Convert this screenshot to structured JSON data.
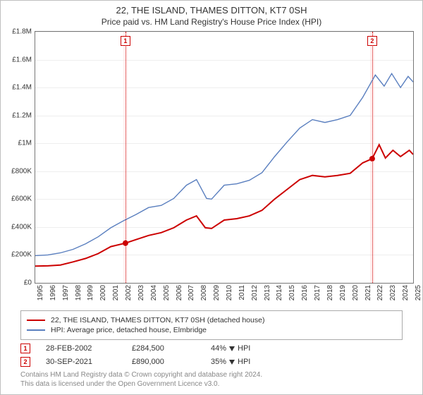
{
  "title": "22, THE ISLAND, THAMES DITTON, KT7 0SH",
  "subtitle": "Price paid vs. HM Land Registry's House Price Index (HPI)",
  "chart": {
    "type": "line",
    "background_color": "#ffffff",
    "grid_color": "#eeeeee",
    "axis_color": "#777777",
    "x": {
      "min": 1995,
      "max": 2025,
      "tick_step": 1
    },
    "y": {
      "min": 0,
      "max": 1800000,
      "tick_step": 200000,
      "tick_labels": [
        "£0",
        "£200K",
        "£400K",
        "£600K",
        "£800K",
        "£1M",
        "£1.2M",
        "£1.4M",
        "£1.6M",
        "£1.8M"
      ]
    },
    "events": [
      {
        "id": "1",
        "x": 2002.16,
        "color": "#cc0000",
        "band_color": "rgba(255,210,210,0.35)"
      },
      {
        "id": "2",
        "x": 2021.75,
        "color": "#cc0000",
        "band_color": "rgba(255,210,210,0.35)"
      }
    ],
    "series": [
      {
        "name": "price_paid",
        "color": "#cc0000",
        "width": 2,
        "pts": [
          [
            1995,
            120000
          ],
          [
            1996,
            122000
          ],
          [
            1997,
            128000
          ],
          [
            1998,
            150000
          ],
          [
            1999,
            175000
          ],
          [
            2000,
            210000
          ],
          [
            2001,
            260000
          ],
          [
            2002.16,
            284500
          ],
          [
            2003,
            310000
          ],
          [
            2004,
            340000
          ],
          [
            2005,
            360000
          ],
          [
            2006,
            395000
          ],
          [
            2007,
            450000
          ],
          [
            2007.8,
            480000
          ],
          [
            2008.5,
            395000
          ],
          [
            2009,
            390000
          ],
          [
            2010,
            450000
          ],
          [
            2011,
            460000
          ],
          [
            2012,
            480000
          ],
          [
            2013,
            520000
          ],
          [
            2014,
            600000
          ],
          [
            2015,
            670000
          ],
          [
            2016,
            740000
          ],
          [
            2017,
            770000
          ],
          [
            2018,
            760000
          ],
          [
            2019,
            770000
          ],
          [
            2020,
            785000
          ],
          [
            2021,
            860000
          ],
          [
            2021.75,
            890000
          ],
          [
            2022.3,
            990000
          ],
          [
            2022.8,
            895000
          ],
          [
            2023.4,
            950000
          ],
          [
            2024,
            905000
          ],
          [
            2024.7,
            950000
          ],
          [
            2025,
            920000
          ]
        ]
      },
      {
        "name": "hpi",
        "color": "#5a7fbf",
        "width": 1.4,
        "pts": [
          [
            1995,
            195000
          ],
          [
            1996,
            200000
          ],
          [
            1997,
            215000
          ],
          [
            1998,
            240000
          ],
          [
            1999,
            280000
          ],
          [
            2000,
            330000
          ],
          [
            2001,
            395000
          ],
          [
            2002,
            445000
          ],
          [
            2003,
            490000
          ],
          [
            2004,
            540000
          ],
          [
            2005,
            555000
          ],
          [
            2006,
            605000
          ],
          [
            2007,
            700000
          ],
          [
            2007.8,
            740000
          ],
          [
            2008.6,
            605000
          ],
          [
            2009,
            600000
          ],
          [
            2010,
            700000
          ],
          [
            2011,
            710000
          ],
          [
            2012,
            735000
          ],
          [
            2013,
            790000
          ],
          [
            2014,
            905000
          ],
          [
            2015,
            1010000
          ],
          [
            2016,
            1110000
          ],
          [
            2017,
            1170000
          ],
          [
            2018,
            1150000
          ],
          [
            2019,
            1170000
          ],
          [
            2020,
            1200000
          ],
          [
            2021,
            1330000
          ],
          [
            2022,
            1490000
          ],
          [
            2022.7,
            1410000
          ],
          [
            2023.3,
            1500000
          ],
          [
            2024,
            1400000
          ],
          [
            2024.6,
            1480000
          ],
          [
            2025,
            1440000
          ]
        ]
      }
    ],
    "sale_markers": [
      {
        "x": 2002.16,
        "y": 284500,
        "color": "#cc0000"
      },
      {
        "x": 2021.75,
        "y": 890000,
        "color": "#cc0000"
      }
    ]
  },
  "legend": [
    {
      "color": "#cc0000",
      "label": "22, THE ISLAND, THAMES DITTON, KT7 0SH (detached house)"
    },
    {
      "color": "#5a7fbf",
      "label": "HPI: Average price, detached house, Elmbridge"
    }
  ],
  "sales": [
    {
      "id": "1",
      "date": "28-FEB-2002",
      "price": "£284,500",
      "delta": "44%",
      "vs": "HPI",
      "color": "#cc0000"
    },
    {
      "id": "2",
      "date": "30-SEP-2021",
      "price": "£890,000",
      "delta": "35%",
      "vs": "HPI",
      "color": "#cc0000"
    }
  ],
  "footnote": {
    "l1": "Contains HM Land Registry data © Crown copyright and database right 2024.",
    "l2": "This data is licensed under the Open Government Licence v3.0."
  }
}
